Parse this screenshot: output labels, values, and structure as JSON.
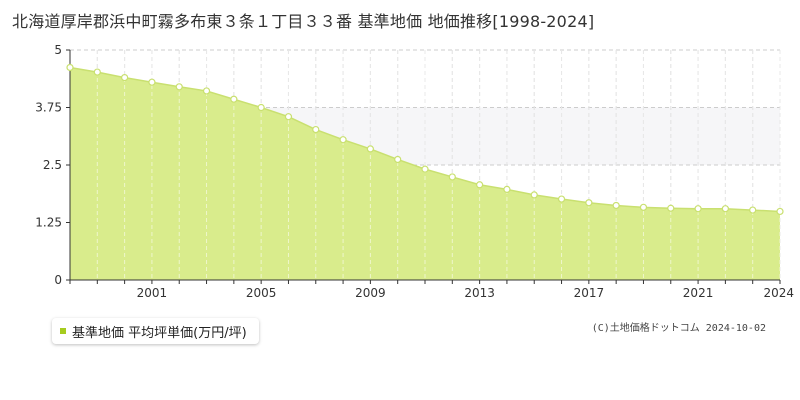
{
  "title": "北海道厚岸郡浜中町霧多布東３条１丁目３３番 基準地価 地価推移[1998-2024]",
  "copyright": "(C)土地価格ドットコム 2024-10-02",
  "colors": {
    "fill": "#d9ec8c",
    "line": "#c9e070",
    "point_fill": "#ffffff",
    "legend_swatch": "#a6cc1f",
    "grid": "#cccccc"
  },
  "chart_data": {
    "type": "area",
    "title": "北海道厚岸郡浜中町霧多布東３条１丁目３３番 基準地価 地価推移[1998-2024]",
    "xlabel": "",
    "ylabel": "",
    "xlim": [
      1998,
      2024
    ],
    "ylim": [
      0,
      5
    ],
    "y_ticks": [
      0,
      1.25,
      2.5,
      3.75,
      5
    ],
    "y_tick_labels": [
      "0",
      "1.25",
      "2.5",
      "3.75",
      "5"
    ],
    "x_ticks": [
      2001,
      2005,
      2009,
      2013,
      2017,
      2021,
      2024
    ],
    "x_tick_labels": [
      "2001",
      "2005",
      "2009",
      "2013",
      "2017",
      "2021",
      "2024"
    ],
    "grid": true,
    "legend_position": "bottom-left",
    "series": [
      {
        "name": "基準地価 平均坪単価(万円/坪)",
        "x": [
          1998,
          1999,
          2000,
          2001,
          2002,
          2003,
          2004,
          2005,
          2006,
          2007,
          2008,
          2009,
          2010,
          2011,
          2012,
          2013,
          2014,
          2015,
          2016,
          2017,
          2018,
          2019,
          2020,
          2021,
          2022,
          2023,
          2024
        ],
        "values": [
          4.62,
          4.52,
          4.4,
          4.3,
          4.2,
          4.11,
          3.93,
          3.75,
          3.55,
          3.27,
          3.05,
          2.85,
          2.62,
          2.41,
          2.24,
          2.07,
          1.97,
          1.85,
          1.76,
          1.68,
          1.62,
          1.58,
          1.56,
          1.55,
          1.55,
          1.52,
          1.49
        ]
      }
    ]
  }
}
